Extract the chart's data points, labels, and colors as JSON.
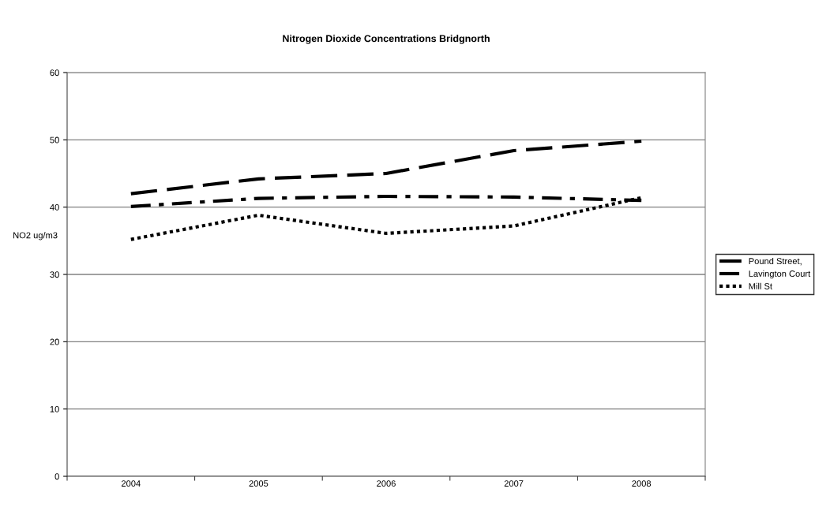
{
  "chart_data": {
    "type": "line",
    "title": "Nitrogen Dioxide Concentrations Bridgnorth",
    "ylabel": "NO2 ug/m3",
    "categories": [
      "2004",
      "2005",
      "2006",
      "2007",
      "2008"
    ],
    "series": [
      {
        "name": "Pound Street,",
        "color": "#000000",
        "line_style": "dashed",
        "values": [
          42.0,
          44.2,
          45.0,
          48.4,
          49.8
        ]
      },
      {
        "name": "Lavington Court",
        "color": "#000000",
        "line_style": "dashdot",
        "values": [
          40.1,
          41.3,
          41.6,
          41.5,
          41.0
        ]
      },
      {
        "name": "Mill St",
        "color": "#000000",
        "line_style": "dotted",
        "values": [
          35.2,
          38.8,
          36.1,
          37.2,
          41.4
        ]
      }
    ],
    "ylim": [
      0,
      60
    ],
    "yticks": [
      0,
      10,
      20,
      30,
      40,
      50,
      60
    ],
    "grid": "y",
    "legend": "right",
    "marker": "none"
  }
}
